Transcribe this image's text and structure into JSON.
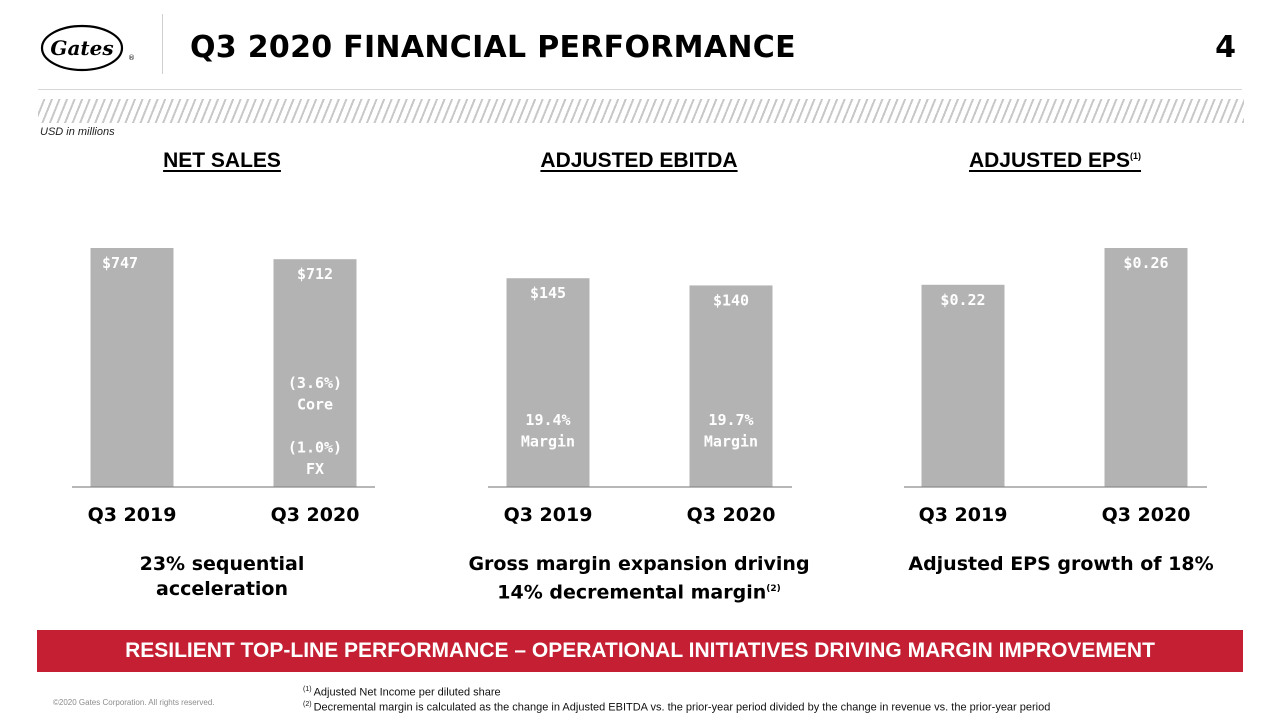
{
  "header": {
    "logo_text": "Gates",
    "title": "Q3 2020 FINANCIAL PERFORMANCE",
    "page_number": "4"
  },
  "units_note": "USD in millions",
  "sections": [
    {
      "title": "NET SALES",
      "superscript": ""
    },
    {
      "title": "ADJUSTED EBITDA",
      "superscript": ""
    },
    {
      "title": "ADJUSTED EPS",
      "superscript": "(1)"
    }
  ],
  "chart_data": [
    {
      "type": "bar",
      "title": "NET SALES",
      "categories": [
        "Q3 2019",
        "Q3 2020"
      ],
      "values": [
        747,
        712
      ],
      "value_labels": [
        "$747",
        "$712"
      ],
      "ylim": [
        0,
        747
      ],
      "annotations": [
        {
          "category": "Q3 2020",
          "lines": [
            "(3.6%)",
            "Core",
            "",
            "(1.0%)",
            "FX"
          ]
        }
      ]
    },
    {
      "type": "bar",
      "title": "ADJUSTED EBITDA",
      "categories": [
        "Q3 2019",
        "Q3 2020"
      ],
      "values": [
        145,
        140
      ],
      "value_labels": [
        "$145",
        "$140"
      ],
      "ylim": [
        0,
        166
      ],
      "annotations": [
        {
          "category": "Q3 2019",
          "lines": [
            "19.4%",
            "Margin"
          ]
        },
        {
          "category": "Q3 2020",
          "lines": [
            "19.7%",
            "Margin"
          ]
        }
      ]
    },
    {
      "type": "bar",
      "title": "ADJUSTED EPS",
      "categories": [
        "Q3 2019",
        "Q3 2020"
      ],
      "values": [
        0.22,
        0.26
      ],
      "value_labels": [
        "$0.22",
        "$0.26"
      ],
      "ylim": [
        0,
        0.26
      ]
    }
  ],
  "captions": [
    {
      "lines": [
        "23% sequential",
        "acceleration"
      ],
      "superscript": ""
    },
    {
      "lines": [
        "Gross margin expansion driving",
        "14% decremental margin"
      ],
      "superscript": "(2)"
    },
    {
      "lines": [
        "Adjusted EPS growth of 18%"
      ],
      "superscript": ""
    }
  ],
  "banner": "RESILIENT TOP-LINE PERFORMANCE – OPERATIONAL INITIATIVES DRIVING MARGIN IMPROVEMENT",
  "copyright": "©2020 Gates Corporation. All rights reserved.",
  "footnotes": [
    {
      "mark": "(1)",
      "text": "Adjusted Net Income per diluted share"
    },
    {
      "mark": "(2)",
      "text": "Decremental margin is calculated as the change in Adjusted EBITDA vs. the prior-year period divided by the change in revenue vs. the prior-year period"
    }
  ],
  "colors": {
    "bar": "#b3b3b3",
    "banner": "#c41f33",
    "axis": "#8c8c8c"
  }
}
